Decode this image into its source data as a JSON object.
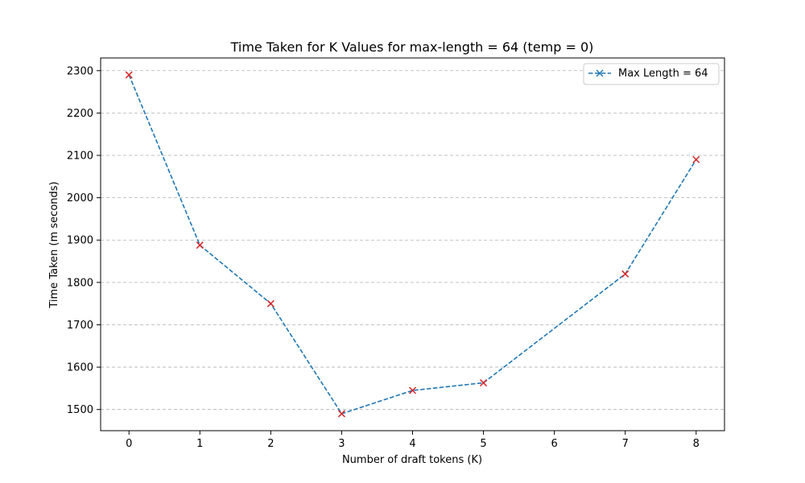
{
  "chart_data": {
    "type": "line",
    "title": "Time Taken for K Values for max-length = 64 (temp = 0)",
    "xlabel": "Number of draft tokens (K)",
    "ylabel": "Time Taken (m seconds)",
    "x_ticks": [
      0,
      1,
      2,
      3,
      4,
      5,
      6,
      7,
      8
    ],
    "y_ticks": [
      1500,
      1600,
      1700,
      1800,
      1900,
      2000,
      2100,
      2200,
      2300
    ],
    "xlim": [
      -0.4,
      8.4
    ],
    "ylim": [
      1450,
      2330
    ],
    "grid": "y-dashed",
    "legend_position": "top-right",
    "series": [
      {
        "name": "Max Length = 64",
        "x": [
          0,
          1,
          2,
          3,
          4,
          5,
          7,
          8
        ],
        "values": [
          2290,
          1888,
          1750,
          1490,
          1545,
          1563,
          1820,
          2090
        ],
        "line_color": "#1f77b4",
        "line_style": "dashed",
        "marker": "x",
        "marker_color": "#d62728"
      }
    ]
  }
}
